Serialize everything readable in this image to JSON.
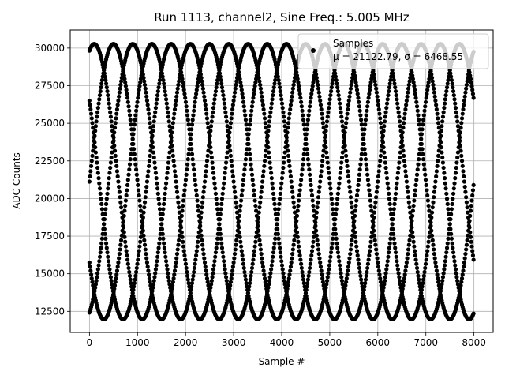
{
  "chart_data": {
    "type": "scatter",
    "title": "Run 1113, channel2, Sine Freq.: 5.005 MHz",
    "xlabel": "Sample #",
    "ylabel": "ADC Counts",
    "xlim": [
      -400,
      8400
    ],
    "ylim": [
      11100,
      31200
    ],
    "x_ticks": [
      0,
      1000,
      2000,
      3000,
      4000,
      5000,
      6000,
      7000,
      8000
    ],
    "x_tick_labels": [
      "0",
      "1000",
      "2000",
      "3000",
      "4000",
      "5000",
      "6000",
      "7000",
      "8000"
    ],
    "y_ticks": [
      12500,
      15000,
      17500,
      20000,
      22500,
      25000,
      27500,
      30000
    ],
    "y_tick_labels": [
      "12500",
      "15000",
      "17500",
      "20000",
      "22500",
      "25000",
      "27500",
      "30000"
    ],
    "grid": true,
    "legend": {
      "position": "top-right",
      "label": "Samples",
      "stats_text": "μ = 21122.79, σ = 6468.55"
    },
    "series": [
      {
        "name": "Samples",
        "color": "#000000",
        "marker": "dot",
        "model": {
          "mean": 21122.79,
          "amplitude": 9150,
          "period_samples": 2000,
          "sampled_traces_phase_deg": [
            0,
            72,
            144,
            216,
            288
          ]
        }
      }
    ]
  }
}
